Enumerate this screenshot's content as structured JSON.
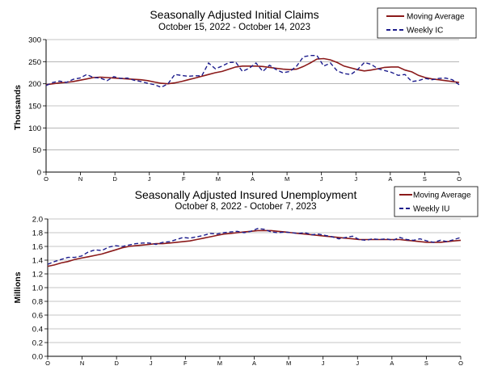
{
  "chart_data": [
    {
      "type": "line",
      "title": "Seasonally Adjusted Initial Claims",
      "subtitle": "October 15, 2022 - October 14, 2023",
      "ylabel": "Thousands",
      "xlabel": "",
      "ylim": [
        0,
        300
      ],
      "yticks": [
        "0",
        "50",
        "100",
        "150",
        "200",
        "250",
        "300"
      ],
      "ytick_values": [
        0,
        50,
        100,
        150,
        200,
        250,
        300
      ],
      "month_labels": [
        "O",
        "N",
        "D",
        "J",
        "F",
        "M",
        "A",
        "M",
        "J",
        "J",
        "A",
        "S",
        "O"
      ],
      "legend_position": "top-right",
      "colors": {
        "moving_average": "#8b1a1a",
        "weekly": "#1c1c8c"
      },
      "series": [
        {
          "name": "Moving Average",
          "style": "solid",
          "values": [
            198,
            200,
            202,
            203,
            205,
            208,
            211,
            214,
            215,
            214,
            213,
            212,
            211,
            210,
            209,
            207,
            204,
            201,
            200,
            202,
            205,
            209,
            213,
            217,
            221,
            225,
            228,
            233,
            238,
            240,
            240,
            240,
            239,
            237,
            235,
            233,
            232,
            233,
            239,
            247,
            256,
            257,
            254,
            248,
            240,
            236,
            232,
            229,
            231,
            234,
            237,
            238,
            238,
            231,
            227,
            219,
            214,
            211,
            209,
            207,
            205,
            203
          ]
        },
        {
          "name": "Weekly IC",
          "style": "dashed",
          "values": [
            196,
            203,
            206,
            203,
            210,
            213,
            221,
            214,
            213,
            207,
            216,
            212,
            213,
            208,
            205,
            201,
            198,
            192,
            200,
            221,
            219,
            217,
            218,
            218,
            247,
            234,
            240,
            248,
            249,
            228,
            235,
            247,
            228,
            242,
            232,
            225,
            228,
            240,
            261,
            264,
            264,
            240,
            247,
            229,
            223,
            221,
            232,
            248,
            244,
            234,
            230,
            226,
            219,
            221,
            205,
            207,
            212,
            209,
            212,
            213,
            209,
            198
          ]
        }
      ]
    },
    {
      "type": "line",
      "title": "Seasonally Adjusted Insured Unemployment",
      "subtitle": "October 8, 2022 - October 7, 2023",
      "ylabel": "Millions",
      "xlabel": "",
      "ylim": [
        0,
        2.0
      ],
      "yticks": [
        "0.0",
        "0.2",
        "0.4",
        "0.6",
        "0.8",
        "1.0",
        "1.2",
        "1.4",
        "1.6",
        "1.8",
        "2.0"
      ],
      "ytick_values": [
        0,
        0.2,
        0.4,
        0.6,
        0.8,
        1.0,
        1.2,
        1.4,
        1.6,
        1.8,
        2.0
      ],
      "month_labels": [
        "O",
        "N",
        "D",
        "J",
        "F",
        "M",
        "A",
        "M",
        "J",
        "J",
        "A",
        "S",
        "O"
      ],
      "legend_position": "top-right",
      "colors": {
        "moving_average": "#8b1a1a",
        "weekly": "#1c1c8c"
      },
      "series": [
        {
          "name": "Moving Average",
          "style": "solid",
          "values": [
            1.31,
            1.33,
            1.36,
            1.38,
            1.41,
            1.43,
            1.45,
            1.47,
            1.49,
            1.52,
            1.55,
            1.58,
            1.6,
            1.61,
            1.62,
            1.63,
            1.64,
            1.64,
            1.65,
            1.66,
            1.67,
            1.68,
            1.7,
            1.72,
            1.74,
            1.76,
            1.78,
            1.79,
            1.8,
            1.81,
            1.82,
            1.83,
            1.83,
            1.83,
            1.82,
            1.81,
            1.8,
            1.79,
            1.78,
            1.77,
            1.76,
            1.75,
            1.74,
            1.73,
            1.72,
            1.71,
            1.7,
            1.7,
            1.7,
            1.7,
            1.7,
            1.7,
            1.7,
            1.69,
            1.68,
            1.67,
            1.66,
            1.66,
            1.66,
            1.67,
            1.68,
            1.69
          ]
        },
        {
          "name": "Weekly IU",
          "style": "dashed",
          "values": [
            1.34,
            1.38,
            1.41,
            1.44,
            1.44,
            1.46,
            1.52,
            1.55,
            1.54,
            1.59,
            1.61,
            1.6,
            1.62,
            1.64,
            1.65,
            1.65,
            1.63,
            1.66,
            1.67,
            1.7,
            1.73,
            1.72,
            1.74,
            1.76,
            1.79,
            1.78,
            1.8,
            1.81,
            1.82,
            1.8,
            1.82,
            1.86,
            1.85,
            1.81,
            1.8,
            1.81,
            1.8,
            1.79,
            1.8,
            1.77,
            1.78,
            1.76,
            1.74,
            1.71,
            1.73,
            1.75,
            1.7,
            1.69,
            1.71,
            1.7,
            1.71,
            1.69,
            1.73,
            1.7,
            1.69,
            1.71,
            1.68,
            1.66,
            1.69,
            1.67,
            1.7,
            1.73
          ]
        }
      ]
    }
  ]
}
